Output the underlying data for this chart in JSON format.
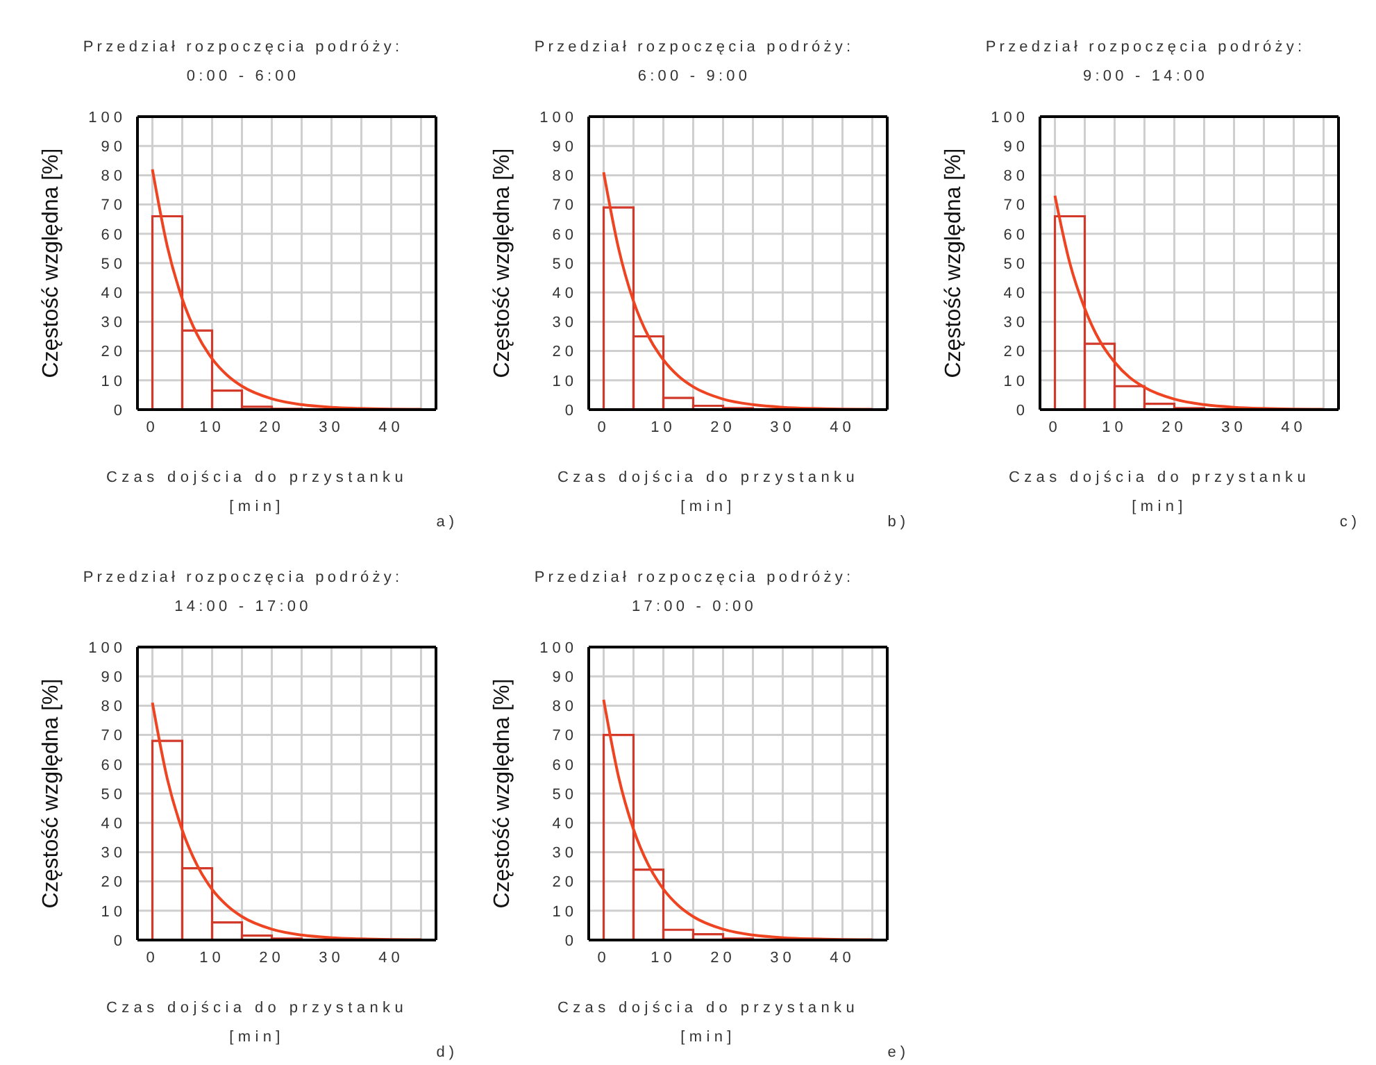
{
  "chart_data": [
    {
      "type": "histogram",
      "title": "Przedział rozpoczęcia podróży:\n0:00 - 6:00",
      "xlabel": "Czas dojścia do przystanku\n[min]",
      "ylabel": "Częstość względna [%]",
      "annotations": [
        "a)"
      ],
      "xlim": [
        -2.5,
        47.5
      ],
      "xticks": [
        0,
        {
          "value": 5,
          "label": null
        },
        10,
        {
          "value": 15,
          "label": null
        },
        20,
        {
          "value": 25,
          "label": null
        },
        30,
        {
          "value": 35,
          "label": null
        },
        40,
        {
          "value": 45,
          "label": null
        }
      ],
      "ylim": [
        0,
        100
      ],
      "yticks": [
        0,
        10,
        20,
        30,
        40,
        50,
        60,
        70,
        80,
        90,
        100
      ],
      "grid": true,
      "series": [
        {
          "color": "#d1392b",
          "bins": [
            0,
            5,
            10,
            15,
            20,
            25
          ],
          "values": [
            66,
            27,
            6.5,
            1,
            0.3
          ]
        },
        {
          "type": "line",
          "color": "#ee4422",
          "x": [
            0,
            2.5,
            5,
            7.5,
            10,
            12.5,
            15,
            20,
            25,
            30,
            35,
            40,
            45
          ],
          "values": [
            82,
            55.7,
            37.8,
            25.6,
            17.4,
            11.8,
            8,
            3.7,
            1.7,
            0.8,
            0.4,
            0.2,
            0.1
          ]
        }
      ]
    },
    {
      "type": "histogram",
      "title": "Przedział rozpoczęcia podróży:\n6:00 - 9:00",
      "xlabel": "Czas dojścia do przystanku\n[min]",
      "ylabel": "Częstość względna [%]",
      "annotations": [
        "b)"
      ],
      "xlim": [
        -2.5,
        47.5
      ],
      "xticks": [
        0,
        {
          "value": 5,
          "label": null
        },
        10,
        {
          "value": 15,
          "label": null
        },
        20,
        {
          "value": 25,
          "label": null
        },
        30,
        {
          "value": 35,
          "label": null
        },
        40,
        {
          "value": 45,
          "label": null
        }
      ],
      "ylim": [
        0,
        100
      ],
      "yticks": [
        0,
        10,
        20,
        30,
        40,
        50,
        60,
        70,
        80,
        90,
        100
      ],
      "grid": true,
      "series": [
        {
          "color": "#d1392b",
          "bins": [
            0,
            5,
            10,
            15,
            20,
            25
          ],
          "values": [
            69,
            25,
            4,
            1.3,
            0.5
          ]
        },
        {
          "type": "line",
          "color": "#ee4422",
          "x": [
            0,
            2.5,
            5,
            7.5,
            10,
            12.5,
            15,
            20,
            25,
            30,
            35,
            40,
            45
          ],
          "values": [
            81,
            55,
            37,
            25,
            17,
            11.5,
            7.8,
            3.6,
            1.7,
            0.8,
            0.4,
            0.2,
            0.1
          ]
        }
      ]
    },
    {
      "type": "histogram",
      "title": "Przedział rozpoczęcia podróży:\n9:00 - 14:00",
      "xlabel": "Czas dojścia do przystanku\n[min]",
      "ylabel": "Częstość względna [%]",
      "annotations": [
        "c)"
      ],
      "xlim": [
        -2.5,
        47.5
      ],
      "xticks": [
        0,
        {
          "value": 5,
          "label": null
        },
        10,
        {
          "value": 15,
          "label": null
        },
        20,
        {
          "value": 25,
          "label": null
        },
        30,
        {
          "value": 35,
          "label": null
        },
        40,
        {
          "value": 45,
          "label": null
        }
      ],
      "ylim": [
        0,
        100
      ],
      "yticks": [
        0,
        10,
        20,
        30,
        40,
        50,
        60,
        70,
        80,
        90,
        100
      ],
      "grid": true,
      "series": [
        {
          "color": "#d1392b",
          "bins": [
            0,
            5,
            10,
            15,
            20,
            25
          ],
          "values": [
            66,
            22.5,
            8,
            2,
            0.5
          ]
        },
        {
          "type": "line",
          "color": "#ee4422",
          "x": [
            0,
            2.5,
            5,
            7.5,
            10,
            12.5,
            15,
            20,
            25,
            30,
            35,
            40,
            45
          ],
          "values": [
            73,
            50,
            34.5,
            23.5,
            16.2,
            11,
            7.6,
            3.6,
            1.7,
            0.8,
            0.4,
            0.2,
            0.1
          ]
        }
      ]
    },
    {
      "type": "histogram",
      "title": "Przedział rozpoczęcia podróży:\n14:00 - 17:00",
      "xlabel": "Czas dojścia do przystanku\n[min]",
      "ylabel": "Częstość względna [%]",
      "annotations": [
        "d)"
      ],
      "xlim": [
        -2.5,
        47.5
      ],
      "xticks": [
        0,
        {
          "value": 5,
          "label": null
        },
        10,
        {
          "value": 15,
          "label": null
        },
        20,
        {
          "value": 25,
          "label": null
        },
        30,
        {
          "value": 35,
          "label": null
        },
        40,
        {
          "value": 45,
          "label": null
        }
      ],
      "ylim": [
        0,
        100
      ],
      "yticks": [
        0,
        10,
        20,
        30,
        40,
        50,
        60,
        70,
        80,
        90,
        100
      ],
      "grid": true,
      "series": [
        {
          "color": "#d1392b",
          "bins": [
            0,
            5,
            10,
            15,
            20,
            25
          ],
          "values": [
            68,
            24.5,
            6,
            1.5,
            0.5
          ]
        },
        {
          "type": "line",
          "color": "#ee4422",
          "x": [
            0,
            2.5,
            5,
            7.5,
            10,
            12.5,
            15,
            20,
            25,
            30,
            35,
            40,
            45
          ],
          "values": [
            81,
            55,
            37.5,
            25.5,
            17.3,
            11.8,
            8,
            3.7,
            1.7,
            0.8,
            0.4,
            0.2,
            0.1
          ]
        }
      ]
    },
    {
      "type": "histogram",
      "title": "Przedział rozpoczęcia podróży:\n17:00 - 0:00",
      "xlabel": "Czas dojścia do przystanku\n[min]",
      "ylabel": "Częstość względna [%]",
      "annotations": [
        "e)"
      ],
      "xlim": [
        -2.5,
        47.5
      ],
      "xticks": [
        0,
        {
          "value": 5,
          "label": null
        },
        10,
        {
          "value": 15,
          "label": null
        },
        20,
        {
          "value": 25,
          "label": null
        },
        30,
        {
          "value": 35,
          "label": null
        },
        40,
        {
          "value": 45,
          "label": null
        }
      ],
      "ylim": [
        0,
        100
      ],
      "yticks": [
        0,
        10,
        20,
        30,
        40,
        50,
        60,
        70,
        80,
        90,
        100
      ],
      "grid": true,
      "series": [
        {
          "color": "#d1392b",
          "bins": [
            0,
            5,
            10,
            15,
            20,
            25
          ],
          "values": [
            70,
            24,
            3.5,
            2,
            0.5
          ]
        },
        {
          "type": "line",
          "color": "#ee4422",
          "x": [
            0,
            2.5,
            5,
            7.5,
            10,
            12.5,
            15,
            20,
            25,
            30,
            35,
            40,
            45
          ],
          "values": [
            82,
            55.7,
            37.8,
            25.6,
            17.4,
            11.8,
            8,
            3.7,
            1.7,
            0.8,
            0.4,
            0.2,
            0.1
          ]
        }
      ]
    }
  ]
}
